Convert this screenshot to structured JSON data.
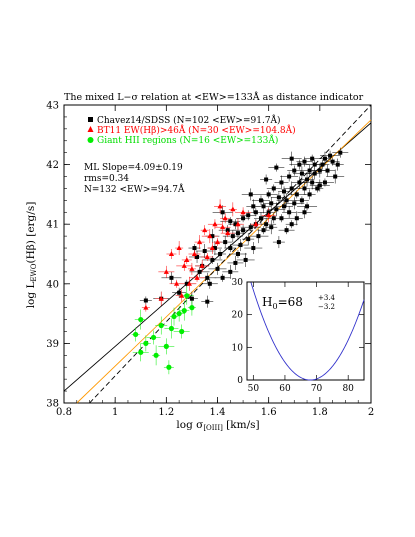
{
  "chart_data": {
    "type": "scatter",
    "title": "The mixed L−σ relation at <EW>=133Å as distance indicator",
    "xlabel": "log σ[OIII] [km/s]",
    "ylabel": "log LEWO(Hβ) [erg/s]",
    "xlim": [
      0.8,
      2.0
    ],
    "ylim": [
      38,
      43
    ],
    "x_ticks": [
      "0.8",
      "1",
      "1.2",
      "1.4",
      "1.6",
      "1.8",
      "2"
    ],
    "y_ticks": [
      "38",
      "39",
      "40",
      "41",
      "42",
      "43"
    ],
    "grid": false,
    "legend_position": "top-left",
    "legend": [
      {
        "label": "Chavez14/SDSS (N=102 <EW>=91.7Å)",
        "color": "#000000",
        "marker": "square"
      },
      {
        "label": "BT11 EW(Hβ)>46Å (N=30 <EW>=104.8Å)",
        "color": "#ff0000",
        "marker": "triangle"
      },
      {
        "label": "Giant HII regions (N=16 <EW>=133Å)",
        "color": "#00ee00",
        "marker": "circle"
      }
    ],
    "annotations": [
      "ML Slope=4.09±0.19",
      "rms=0.34",
      "N=132 <EW>=94.7Å"
    ],
    "series": [
      {
        "name": "Chavez14/SDSS (N=102 <EW>=91.7Å)",
        "color": "#000000",
        "marker": "square",
        "points": [
          [
            1.12,
            39.72
          ],
          [
            1.18,
            39.75
          ],
          [
            1.22,
            40.1
          ],
          [
            1.25,
            39.85
          ],
          [
            1.28,
            40.0
          ],
          [
            1.3,
            39.75
          ],
          [
            1.32,
            40.45
          ],
          [
            1.33,
            40.2
          ],
          [
            1.34,
            40.3
          ],
          [
            1.35,
            40.55
          ],
          [
            1.36,
            39.7
          ],
          [
            1.37,
            40.0
          ],
          [
            1.38,
            40.4
          ],
          [
            1.38,
            40.8
          ],
          [
            1.4,
            40.25
          ],
          [
            1.41,
            40.5
          ],
          [
            1.42,
            40.1
          ],
          [
            1.42,
            41.2
          ],
          [
            1.43,
            40.7
          ],
          [
            1.44,
            40.9
          ],
          [
            1.45,
            40.6
          ],
          [
            1.45,
            40.2
          ],
          [
            1.46,
            40.8
          ],
          [
            1.47,
            41.0
          ],
          [
            1.48,
            40.5
          ],
          [
            1.48,
            40.85
          ],
          [
            1.49,
            40.65
          ],
          [
            1.5,
            40.9
          ],
          [
            1.5,
            41.1
          ],
          [
            1.51,
            40.4
          ],
          [
            1.52,
            40.75
          ],
          [
            1.52,
            41.15
          ],
          [
            1.53,
            40.95
          ],
          [
            1.54,
            41.3
          ],
          [
            1.54,
            40.6
          ],
          [
            1.55,
            41.0
          ],
          [
            1.55,
            41.2
          ],
          [
            1.56,
            40.8
          ],
          [
            1.57,
            41.1
          ],
          [
            1.57,
            41.4
          ],
          [
            1.58,
            40.9
          ],
          [
            1.58,
            41.3
          ],
          [
            1.59,
            41.0
          ],
          [
            1.6,
            41.2
          ],
          [
            1.6,
            41.5
          ],
          [
            1.61,
            40.95
          ],
          [
            1.61,
            41.35
          ],
          [
            1.62,
            41.1
          ],
          [
            1.62,
            41.6
          ],
          [
            1.63,
            41.25
          ],
          [
            1.64,
            40.7
          ],
          [
            1.64,
            41.45
          ],
          [
            1.65,
            41.1
          ],
          [
            1.65,
            41.7
          ],
          [
            1.66,
            41.3
          ],
          [
            1.66,
            41.55
          ],
          [
            1.67,
            40.9
          ],
          [
            1.67,
            41.4
          ],
          [
            1.68,
            41.2
          ],
          [
            1.68,
            41.8
          ],
          [
            1.69,
            41.0
          ],
          [
            1.69,
            41.6
          ],
          [
            1.7,
            41.35
          ],
          [
            1.7,
            41.9
          ],
          [
            1.71,
            41.5
          ],
          [
            1.71,
            41.1
          ],
          [
            1.72,
            41.7
          ],
          [
            1.72,
            42.0
          ],
          [
            1.73,
            41.4
          ],
          [
            1.73,
            41.85
          ],
          [
            1.74,
            41.6
          ],
          [
            1.74,
            42.05
          ],
          [
            1.75,
            41.3
          ],
          [
            1.75,
            41.75
          ],
          [
            1.76,
            41.9
          ],
          [
            1.76,
            41.5
          ],
          [
            1.77,
            42.1
          ],
          [
            1.77,
            41.7
          ],
          [
            1.78,
            41.85
          ],
          [
            1.78,
            42.0
          ],
          [
            1.79,
            41.6
          ],
          [
            1.8,
            41.9
          ],
          [
            1.8,
            41.65
          ],
          [
            1.81,
            42.0
          ],
          [
            1.82,
            41.7
          ],
          [
            1.82,
            42.1
          ],
          [
            1.83,
            41.9
          ],
          [
            1.84,
            42.15
          ],
          [
            1.85,
            42.05
          ],
          [
            1.86,
            41.8
          ],
          [
            1.87,
            42.0
          ],
          [
            1.88,
            42.2
          ],
          [
            1.45,
            41.05
          ],
          [
            1.39,
            40.6
          ],
          [
            1.53,
            41.5
          ],
          [
            1.59,
            41.75
          ],
          [
            1.63,
            41.95
          ],
          [
            1.69,
            42.1
          ],
          [
            1.74,
            41.2
          ],
          [
            1.36,
            40.1
          ],
          [
            1.31,
            40.6
          ],
          [
            1.47,
            40.35
          ]
        ]
      },
      {
        "name": "BT11 EW(Hβ)>46Å (N=30 <EW>=104.8Å)",
        "color": "#ff0000",
        "marker": "triangle",
        "points": [
          [
            1.12,
            39.6
          ],
          [
            1.18,
            39.75
          ],
          [
            1.2,
            40.2
          ],
          [
            1.22,
            40.5
          ],
          [
            1.24,
            40.0
          ],
          [
            1.25,
            40.6
          ],
          [
            1.26,
            39.8
          ],
          [
            1.27,
            40.3
          ],
          [
            1.28,
            40.4
          ],
          [
            1.29,
            40.0
          ],
          [
            1.3,
            40.25
          ],
          [
            1.31,
            40.5
          ],
          [
            1.32,
            40.1
          ],
          [
            1.33,
            40.7
          ],
          [
            1.34,
            40.3
          ],
          [
            1.35,
            40.9
          ],
          [
            1.36,
            40.45
          ],
          [
            1.37,
            40.8
          ],
          [
            1.38,
            40.6
          ],
          [
            1.39,
            41.0
          ],
          [
            1.4,
            40.7
          ],
          [
            1.41,
            41.3
          ],
          [
            1.42,
            40.95
          ],
          [
            1.43,
            41.1
          ],
          [
            1.44,
            40.85
          ],
          [
            1.46,
            41.25
          ],
          [
            1.48,
            41.0
          ],
          [
            1.5,
            41.2
          ],
          [
            1.55,
            41.0
          ],
          [
            1.6,
            41.15
          ]
        ]
      },
      {
        "name": "Giant HII regions (N=16 <EW>=133Å)",
        "color": "#00ee00",
        "marker": "circle",
        "points": [
          [
            1.08,
            39.15
          ],
          [
            1.1,
            39.4
          ],
          [
            1.1,
            38.85
          ],
          [
            1.12,
            39.0
          ],
          [
            1.15,
            39.1
          ],
          [
            1.16,
            38.8
          ],
          [
            1.18,
            39.3
          ],
          [
            1.2,
            38.95
          ],
          [
            1.21,
            38.6
          ],
          [
            1.22,
            39.25
          ],
          [
            1.23,
            39.45
          ],
          [
            1.25,
            39.5
          ],
          [
            1.26,
            39.2
          ],
          [
            1.27,
            39.55
          ],
          [
            1.28,
            39.8
          ],
          [
            1.3,
            39.6
          ]
        ]
      }
    ],
    "fit_lines": [
      {
        "style": "solid",
        "color": "#000000",
        "points": [
          [
            0.8,
            38.2
          ],
          [
            2.0,
            42.7
          ]
        ]
      },
      {
        "style": "solid",
        "color": "#ff9900",
        "points": [
          [
            0.85,
            38.0
          ],
          [
            2.0,
            42.75
          ]
        ]
      },
      {
        "style": "dashed",
        "color": "#000000",
        "points": [
          [
            0.9,
            38.0
          ],
          [
            2.0,
            43.0
          ]
        ]
      }
    ],
    "inset": {
      "type": "line",
      "label": "H0=68 +3.4 −3.2",
      "label_main": "H",
      "label_sub": "0",
      "label_value": "=68",
      "label_up": "+3.4",
      "label_down": "−3.2",
      "xlim": [
        48,
        85
      ],
      "ylim": [
        0,
        30
      ],
      "x_ticks": [
        "50",
        "60",
        "70",
        "80"
      ],
      "y_ticks": [
        "0",
        "10",
        "20",
        "30"
      ],
      "color": "#3333cc",
      "curve": {
        "x0": 68,
        "scale": 0.085
      }
    }
  }
}
